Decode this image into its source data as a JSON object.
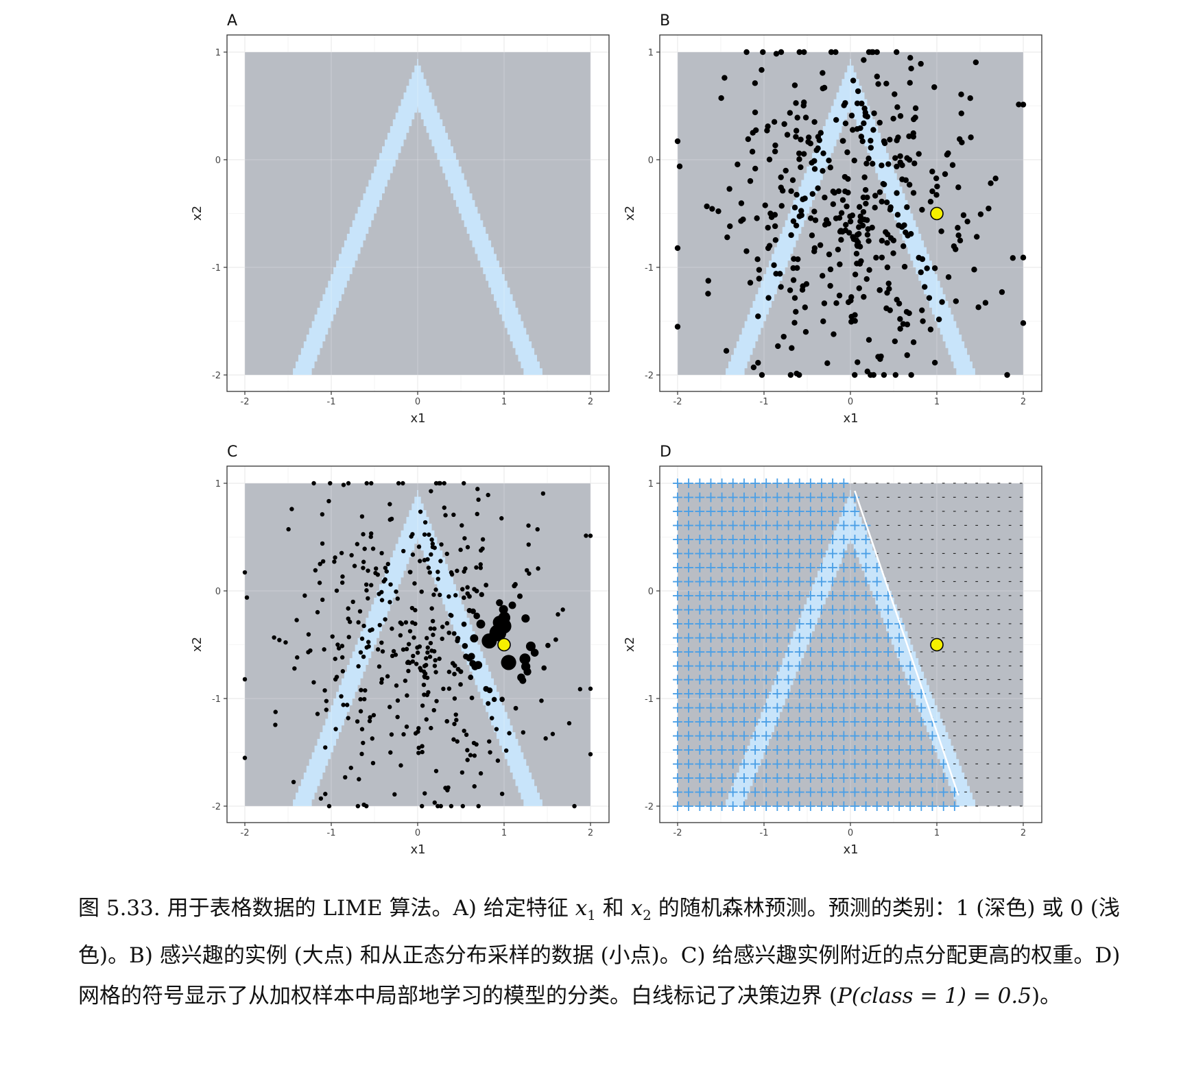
{
  "chart_data": [
    {
      "type": "scatter",
      "title": "A",
      "xlabel": "x1",
      "ylabel": "x2",
      "xlim": [
        -2,
        2
      ],
      "ylim": [
        -2,
        1
      ],
      "x_ticks": [
        "-2",
        "-1",
        "0",
        "1",
        "2"
      ],
      "y_ticks": [
        "-2",
        "-1",
        "0",
        "1"
      ],
      "grid": true,
      "background": {
        "class_1_color": "#b9bdc4",
        "class_0_color": "#c8e4fa",
        "class_0_region": "inverted-V band with apex near (0, 0.95); outer edge at x2 = 0.95 - 2*|x1|, inner edge at x2 = 0.45 - 2*|x1|"
      }
    },
    {
      "type": "scatter",
      "title": "B",
      "xlabel": "x1",
      "ylabel": "x2",
      "xlim": [
        -2,
        2
      ],
      "ylim": [
        -2,
        1
      ],
      "x_ticks": [
        "-2",
        "-1",
        "0",
        "1",
        "2"
      ],
      "y_ticks": [
        "-2",
        "-1",
        "0",
        "1"
      ],
      "grid": true,
      "series": [
        {
          "name": "",
          "color": "#000000",
          "n_points": 420,
          "distribution": "normal, mean (0, -0.5), sd 0.75, clipped to axis range"
        },
        {
          "name": "",
          "color": "#f5f000",
          "points": [
            [
              1.0,
              -0.5
            ]
          ]
        }
      ]
    },
    {
      "type": "scatter",
      "title": "C",
      "xlabel": "x1",
      "ylabel": "x2",
      "xlim": [
        -2,
        2
      ],
      "ylim": [
        -2,
        1
      ],
      "x_ticks": [
        "-2",
        "-1",
        "0",
        "1",
        "2"
      ],
      "y_ticks": [
        "-2",
        "-1",
        "0",
        "1"
      ],
      "grid": true,
      "series": [
        {
          "name": "",
          "color": "#000000",
          "n_points": 420,
          "weight": "point size grows with proximity to (1.0, -0.5)"
        },
        {
          "name": "",
          "color": "#f5f000",
          "points": [
            [
              1.0,
              -0.5
            ]
          ]
        }
      ]
    },
    {
      "type": "scatter",
      "title": "D",
      "xlabel": "x1",
      "ylabel": "x2",
      "xlim": [
        -2,
        2
      ],
      "ylim": [
        -2,
        1
      ],
      "x_ticks": [
        "-2",
        "-1",
        "0",
        "1",
        "2"
      ],
      "y_ticks": [
        "-2",
        "-1",
        "0",
        "1"
      ],
      "grid": true,
      "marker_grid": {
        "x_start": -2,
        "x_step": 0.1282,
        "y_start": -2,
        "y_step": 0.1304,
        "plus_symbol": "+",
        "minus_symbol": "-",
        "plus_color": "#4a9fe6",
        "minus_color": "#222222"
      },
      "decision_boundary": {
        "color": "#ffffff",
        "from": [
          0.05,
          0.93
        ],
        "to": [
          1.25,
          -1.9
        ]
      },
      "series": [
        {
          "name": "",
          "color": "#f5f000",
          "points": [
            [
              1.0,
              -0.5
            ]
          ]
        }
      ]
    }
  ],
  "caption": {
    "p1": "图 5.33.  用于表格数据的 LIME 算法。A) 给定特征 ",
    "x1_var": "x",
    "x1_sub": "1",
    "p2": " 和 ",
    "x2_var": "x",
    "x2_sub": "2",
    "p3": " 的随机森林预测。预测的类别：1 (深色) 或 0 (浅色)。B) 感兴趣的实例 (大点) 和从正态分布采样的数据 (小点)。C) 给感兴趣实例附近的点分配更高的权重。D) 网格的符号显示了从加权样本中局部地学习的模型的分类。白线标记了决策边界 (",
    "formula": "P(class = 1) = 0.5",
    "p4": ")。"
  }
}
